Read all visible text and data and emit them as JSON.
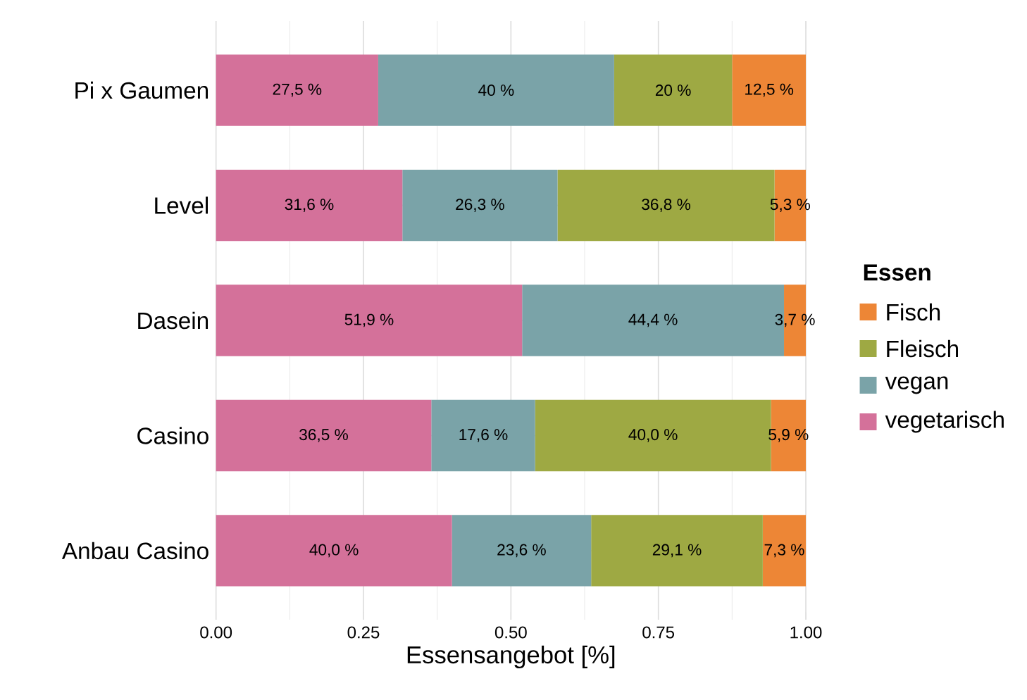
{
  "chart_data": {
    "type": "bar",
    "orientation": "horizontal",
    "stacked": true,
    "categories": [
      "Pi x Gaumen",
      "Level",
      "Dasein",
      "Casino",
      "Anbau Casino"
    ],
    "series": [
      {
        "name": "vegetarisch",
        "color": "#d4719a",
        "values": [
          0.275,
          0.316,
          0.519,
          0.365,
          0.4
        ],
        "value_labels": [
          "27,5 %",
          "31,6 %",
          "51,9 %",
          "36,5 %",
          "40,0 %"
        ]
      },
      {
        "name": "vegan",
        "color": "#7aa3a8",
        "values": [
          0.4,
          0.263,
          0.444,
          0.176,
          0.236
        ],
        "value_labels": [
          "40 %",
          "26,3 %",
          "44,4 %",
          "17,6 %",
          "23,6 %"
        ]
      },
      {
        "name": "Fleisch",
        "color": "#9ea943",
        "values": [
          0.2,
          0.368,
          0,
          0.4,
          0.291
        ],
        "value_labels": [
          "20 %",
          "36,8 %",
          null,
          "40,0 %",
          "29,1 %"
        ]
      },
      {
        "name": "Fisch",
        "color": "#ed8636",
        "values": [
          0.125,
          0.053,
          0.037,
          0.059,
          0.073
        ],
        "value_labels": [
          "12,5 %",
          "5,3 %",
          "3,7 %",
          "5,9 %",
          "7,3 %"
        ]
      }
    ],
    "xlim": [
      0,
      1
    ],
    "xticks": [
      {
        "value": 0,
        "label": "0.00"
      },
      {
        "value": 0.25,
        "label": "0.25"
      },
      {
        "value": 0.5,
        "label": "0.50"
      },
      {
        "value": 0.75,
        "label": "0.75"
      },
      {
        "value": 1,
        "label": "1.00"
      }
    ],
    "xlabel": "Essensangebot [%]",
    "legend_title": "Essen",
    "legend": "right",
    "grid": true
  }
}
